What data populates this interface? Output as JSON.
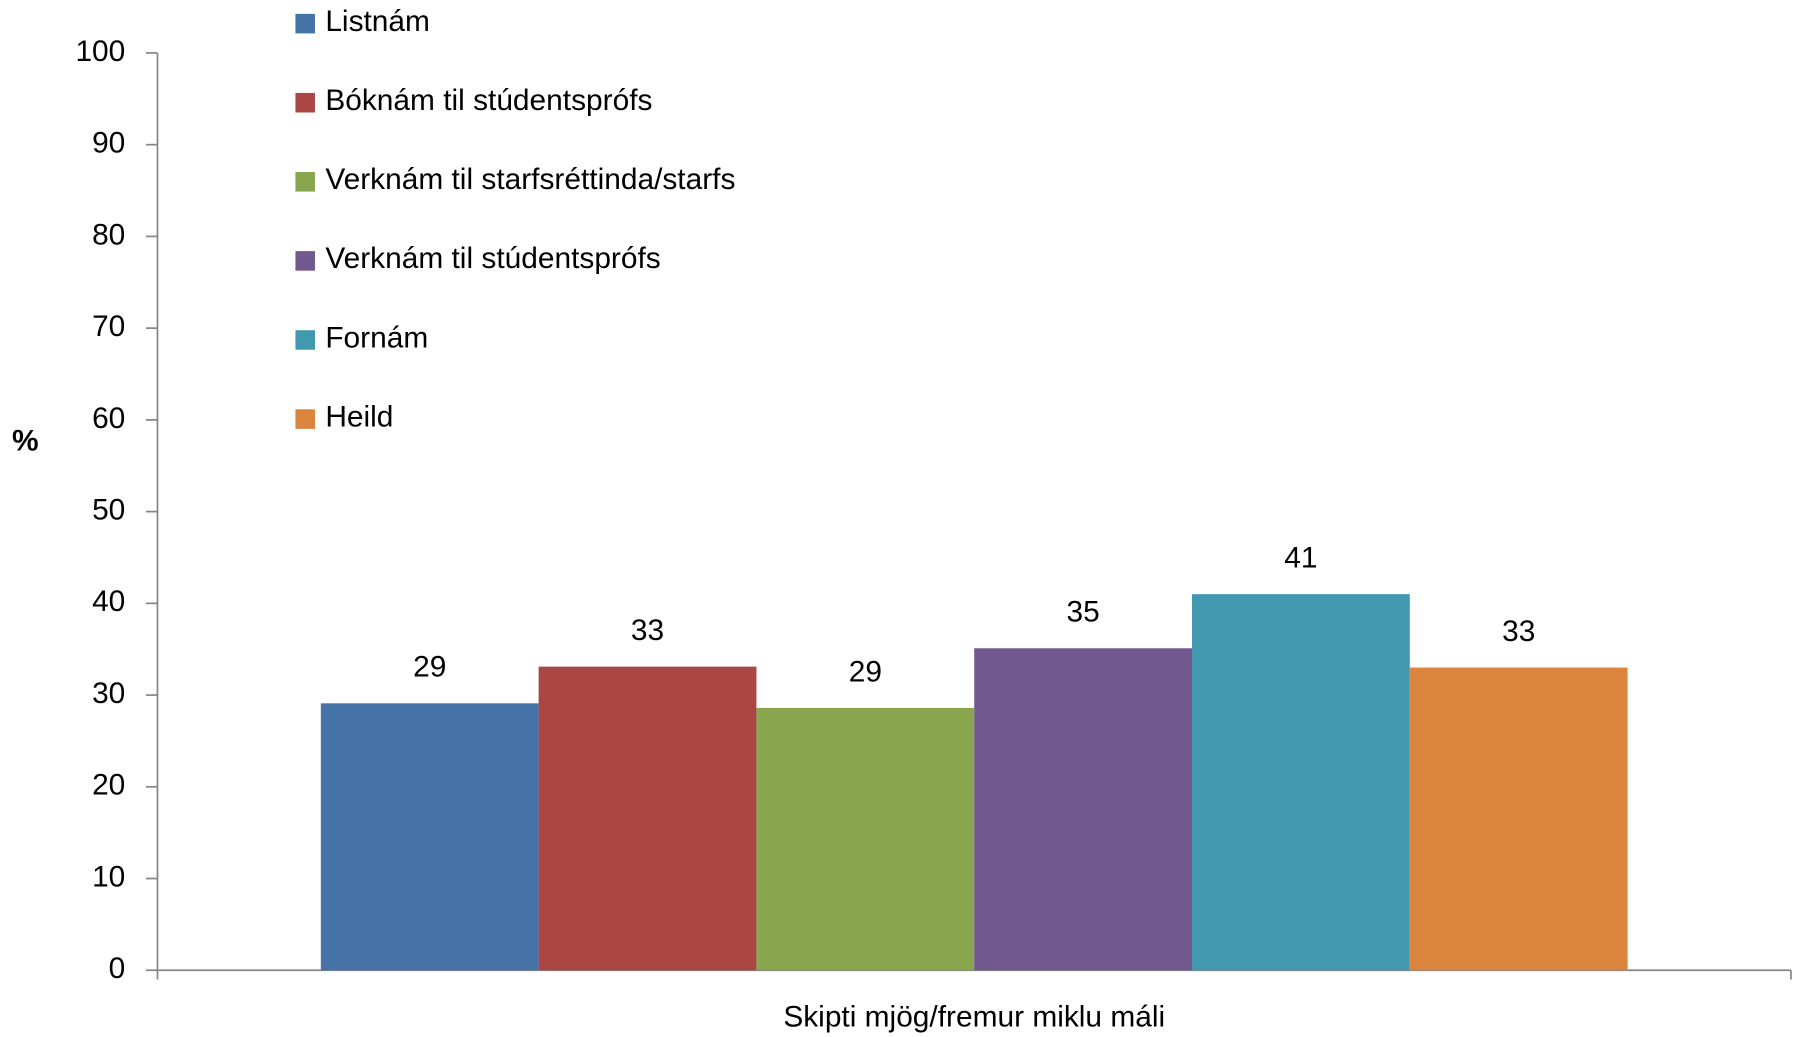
{
  "chart_data": {
    "type": "bar",
    "categories": [
      "Skipti mjög/fremur miklu máli"
    ],
    "series": [
      {
        "name": "Listnám",
        "color": "#4572a7",
        "values": [
          29.1
        ],
        "value_labels": [
          "29"
        ]
      },
      {
        "name": "Bóknám til stúdentsprófs",
        "color": "#aa4643",
        "values": [
          33.1
        ],
        "value_labels": [
          "33"
        ]
      },
      {
        "name": "Verknám til starfsréttinda/starfs",
        "color": "#89a54e",
        "values": [
          28.6
        ],
        "value_labels": [
          "29"
        ]
      },
      {
        "name": "Verknám til stúdentsprófs",
        "color": "#71588f",
        "values": [
          35.1
        ],
        "value_labels": [
          "35"
        ]
      },
      {
        "name": "Fornám",
        "color": "#4198af",
        "values": [
          41.0
        ],
        "value_labels": [
          "41"
        ]
      },
      {
        "name": "Heild",
        "color": "#db843d",
        "values": [
          33.0
        ],
        "value_labels": [
          "33"
        ]
      }
    ],
    "y_label": "%",
    "ylim": [
      0,
      100
    ],
    "yticks": [
      0,
      10,
      20,
      30,
      40,
      50,
      60,
      70,
      80,
      90,
      100
    ],
    "legend": "top-left",
    "grid": false
  }
}
